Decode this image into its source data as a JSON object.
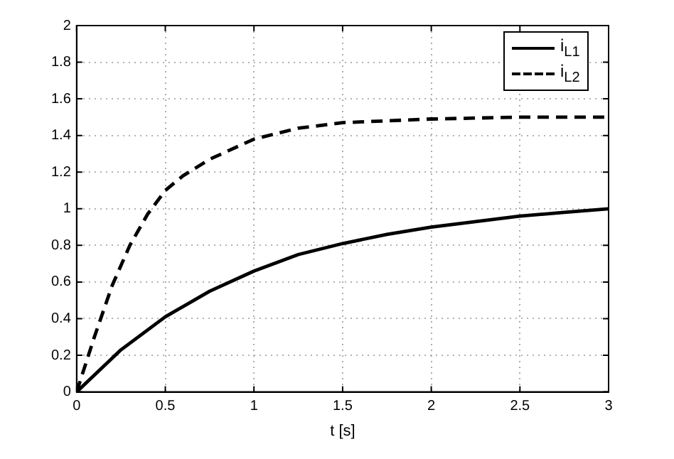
{
  "chart_data": {
    "type": "line",
    "xlabel": "t [s]",
    "xlim": [
      0,
      3
    ],
    "xticks": [
      0,
      0.5,
      1,
      1.5,
      2,
      2.5,
      3
    ],
    "ylim": [
      0,
      2
    ],
    "yticks": [
      0,
      0.2,
      0.4,
      0.6,
      0.8,
      1,
      1.2,
      1.4,
      1.6,
      1.8,
      2
    ],
    "grid": true,
    "legend": "top right",
    "marker": "none",
    "series": [
      {
        "name": "i$_{L1}$",
        "color": "#000000",
        "line_style": "solid",
        "x": [
          0,
          0.25,
          0.5,
          0.75,
          1,
          1.25,
          1.5,
          1.75,
          2,
          2.25,
          2.5,
          2.75,
          3
        ],
        "values": [
          0,
          0.23,
          0.41,
          0.55,
          0.66,
          0.75,
          0.81,
          0.86,
          0.9,
          0.93,
          0.96,
          0.98,
          1.0
        ]
      },
      {
        "name": "i$_{L2}$",
        "color": "#000000",
        "line_style": "dashed",
        "x": [
          0,
          0.1,
          0.2,
          0.3,
          0.4,
          0.5,
          0.6,
          0.75,
          1,
          1.25,
          1.5,
          2,
          2.5,
          3
        ],
        "values": [
          0,
          0.3,
          0.58,
          0.8,
          0.97,
          1.1,
          1.18,
          1.27,
          1.38,
          1.44,
          1.47,
          1.49,
          1.5,
          1.5
        ]
      }
    ]
  }
}
